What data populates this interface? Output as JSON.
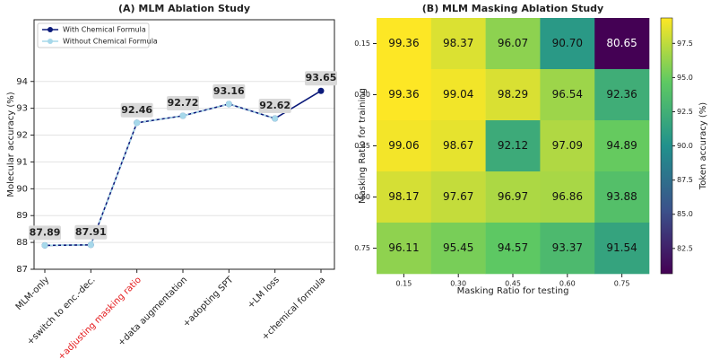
{
  "chart_data": [
    {
      "type": "line",
      "title": "(A) MLM Ablation Study",
      "ylabel": "Molecular accuracy (%)",
      "categories": [
        "MLM-only",
        "+switch to enc.-dec.",
        "+adjusting masking ratio",
        "+data augmentation",
        "+adopting SPT",
        "+LM loss",
        "+chemical formula"
      ],
      "highlight_category_color": [
        "#222",
        "#222",
        "#e41a1c",
        "#222",
        "#222",
        "#222",
        "#222"
      ],
      "series": [
        {
          "name": "With Chemical Formula",
          "color": "#0b1a7a",
          "values": [
            87.89,
            87.91,
            92.46,
            92.72,
            93.16,
            92.62,
            93.65
          ]
        },
        {
          "name": "Without Chemical Formula",
          "color": "#a6d8ea",
          "values": [
            87.89,
            87.91,
            92.46,
            92.72,
            93.16,
            92.62,
            null
          ]
        }
      ],
      "ylim": [
        87,
        96.3
      ],
      "yticks": [
        87,
        88,
        89,
        90,
        91,
        92,
        93,
        94
      ],
      "grid": true,
      "legend": "upper left"
    },
    {
      "type": "heatmap",
      "title": "(B) MLM Masking Ablation Study",
      "xlabel": "Masking Ratio for testing",
      "ylabel": "Masking Ratio for training",
      "colorbar_label": "Token accuracy (%)",
      "x": [
        "0.15",
        "0.30",
        "0.45",
        "0.60",
        "0.75"
      ],
      "y": [
        "0.15",
        "0.30",
        "0.45",
        "0.60",
        "0.75"
      ],
      "values": [
        [
          99.36,
          98.37,
          96.07,
          90.7,
          80.65
        ],
        [
          99.36,
          99.04,
          98.29,
          96.54,
          92.36
        ],
        [
          99.06,
          98.67,
          92.12,
          97.09,
          94.89
        ],
        [
          98.17,
          97.67,
          96.97,
          96.86,
          93.88
        ],
        [
          96.11,
          95.45,
          94.57,
          93.37,
          91.54
        ]
      ],
      "value_labels": [
        [
          "99.36",
          "98.37",
          "96.07",
          "90.70",
          "80.65"
        ],
        [
          "99.36",
          "99.04",
          "98.29",
          "96.54",
          "92.36"
        ],
        [
          "99.06",
          "98.67",
          "92.12",
          "97.09",
          "94.89"
        ],
        [
          "98.17",
          "97.67",
          "96.97",
          "96.86",
          "93.88"
        ],
        [
          "96.11",
          "95.45",
          "94.57",
          "93.37",
          "91.54"
        ]
      ],
      "clim": [
        80.65,
        99.36
      ],
      "cticks": [
        82.5,
        {
          "value": 85,
          "label": "85.0"
        },
        87.5,
        {
          "value": 90,
          "label": "90.0"
        },
        92.5,
        {
          "value": 95,
          "label": "95.0"
        },
        97.5
      ],
      "colormap": "viridis"
    }
  ]
}
